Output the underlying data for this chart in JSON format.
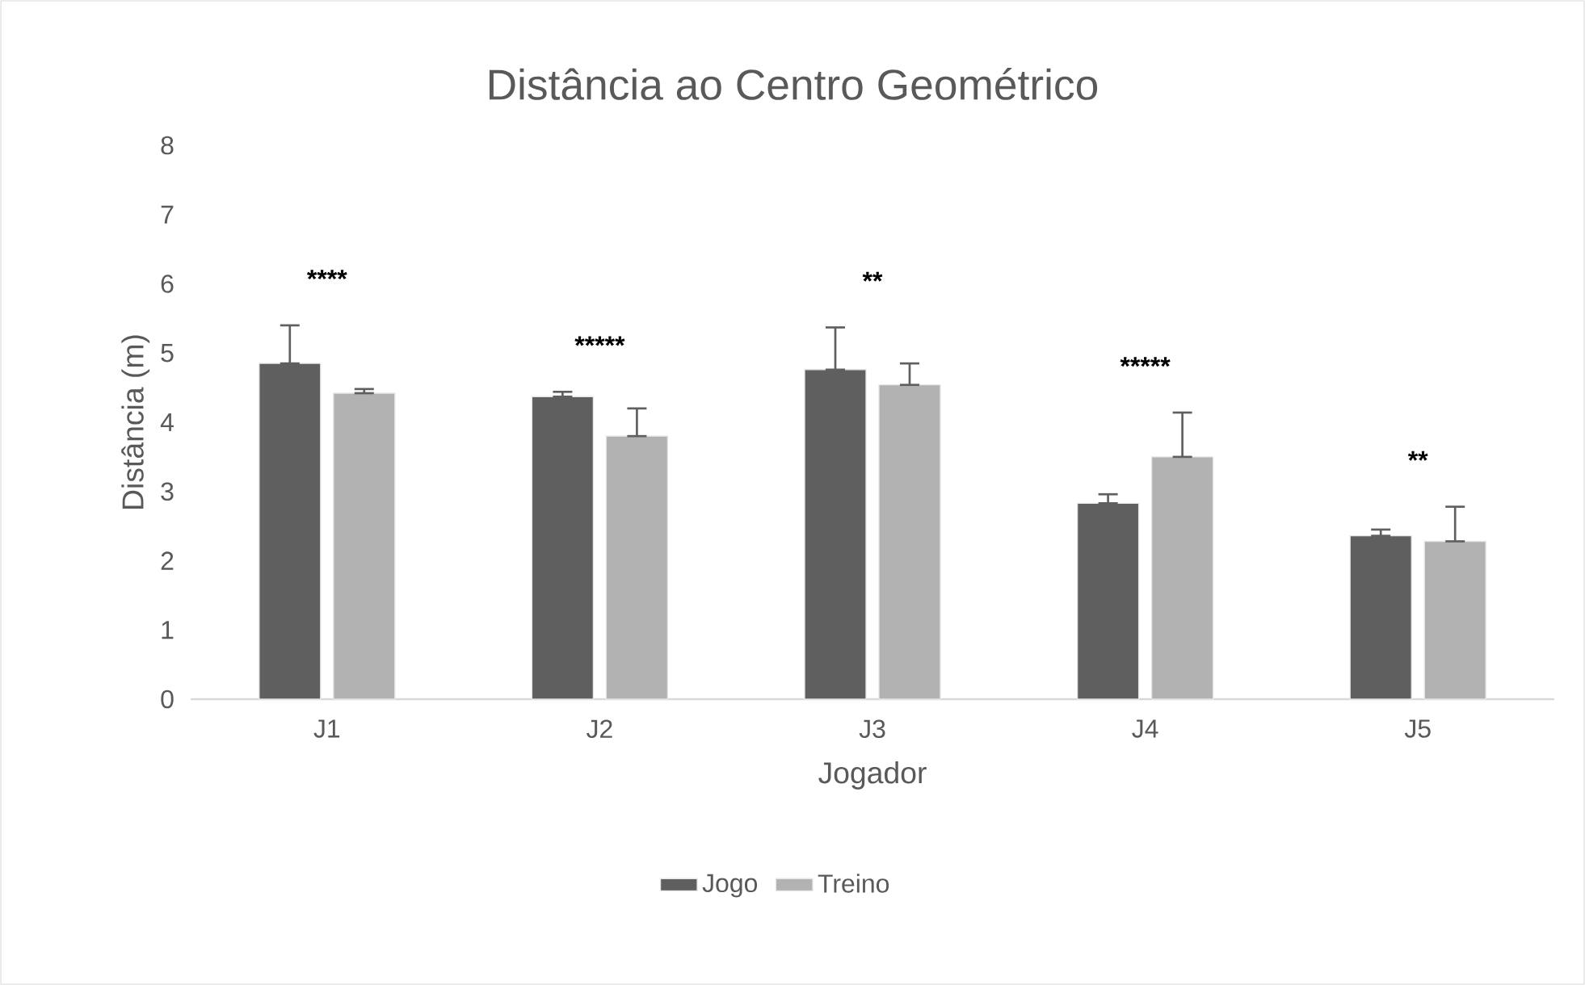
{
  "chart_data": {
    "type": "bar",
    "title": "Distância ao Centro Geométrico",
    "xlabel": "Jogador",
    "ylabel": "Distância (m)",
    "categories": [
      "J1",
      "J2",
      "J3",
      "J4",
      "J5"
    ],
    "series": [
      {
        "name": "Jogo",
        "color": "#5f5f5f",
        "values": [
          4.85,
          4.37,
          4.76,
          2.83,
          2.36
        ],
        "errors": [
          [
            4.85,
            5.4
          ],
          [
            4.37,
            4.44
          ],
          [
            4.76,
            5.37
          ],
          [
            2.83,
            2.96
          ],
          [
            2.36,
            2.45
          ]
        ]
      },
      {
        "name": "Treino",
        "color": "#b2b2b2",
        "values": [
          4.42,
          3.8,
          4.54,
          3.5,
          2.28
        ],
        "errors": [
          [
            4.42,
            4.48
          ],
          [
            3.8,
            4.2
          ],
          [
            4.54,
            4.85
          ],
          [
            3.5,
            4.14
          ],
          [
            2.28,
            2.78
          ]
        ]
      }
    ],
    "ylim": [
      0,
      8
    ],
    "yticks": [
      0,
      1,
      2,
      3,
      4,
      5,
      6,
      7,
      8
    ],
    "grid": false,
    "legend": "bottom",
    "annotations": [
      "****",
      "*****",
      "**",
      "*****",
      "**"
    ]
  }
}
